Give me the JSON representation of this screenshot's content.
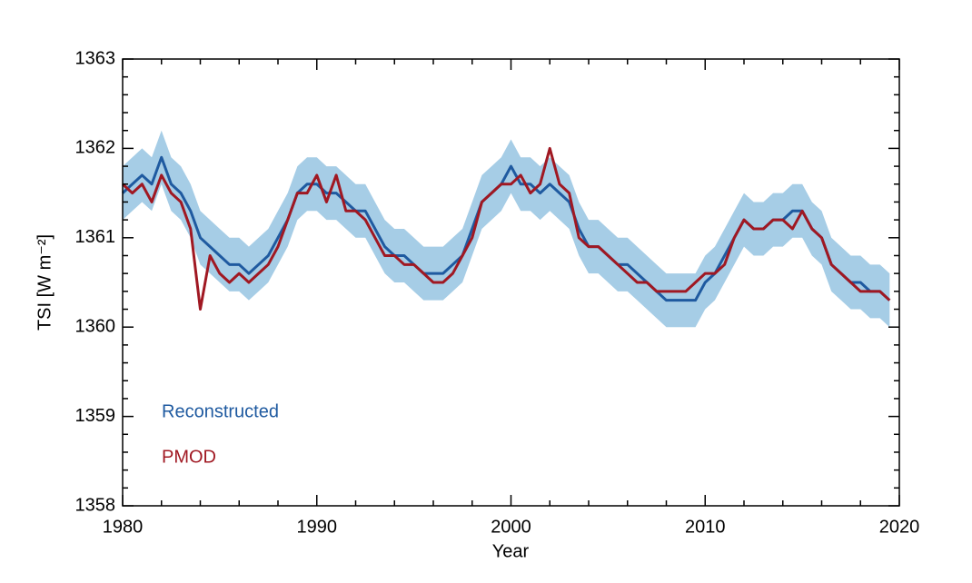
{
  "chart_data": {
    "type": "line",
    "x_label": "Year",
    "y_label": "TSI [W m⁻²]",
    "x": [
      1980,
      1980.5,
      1981,
      1981.5,
      1982,
      1982.5,
      1983,
      1983.5,
      1984,
      1984.5,
      1985,
      1985.5,
      1986,
      1986.5,
      1987,
      1987.5,
      1988,
      1988.5,
      1989,
      1989.5,
      1990,
      1990.5,
      1991,
      1991.5,
      1992,
      1992.5,
      1993,
      1993.5,
      1994,
      1994.5,
      1995,
      1995.5,
      1996,
      1996.5,
      1997,
      1997.5,
      1998,
      1998.5,
      1999,
      1999.5,
      2000,
      2000.5,
      2001,
      2001.5,
      2002,
      2002.5,
      2003,
      2003.5,
      2004,
      2004.5,
      2005,
      2005.5,
      2006,
      2006.5,
      2007,
      2007.5,
      2008,
      2008.5,
      2009,
      2009.5,
      2010,
      2010.5,
      2011,
      2011.5,
      2012,
      2012.5,
      2013,
      2013.5,
      2014,
      2014.5,
      2015,
      2015.5,
      2016,
      2016.5,
      2017,
      2017.5,
      2018,
      2018.5,
      2019,
      2019.5
    ],
    "series": [
      {
        "name": "Reconstructed",
        "color": "#1f5aa0",
        "band_color": "#a6cde6",
        "values": [
          1361.5,
          1361.6,
          1361.7,
          1361.6,
          1361.9,
          1361.6,
          1361.5,
          1361.3,
          1361.0,
          1360.9,
          1360.8,
          1360.7,
          1360.7,
          1360.6,
          1360.7,
          1360.8,
          1361.0,
          1361.2,
          1361.5,
          1361.6,
          1361.6,
          1361.5,
          1361.5,
          1361.4,
          1361.3,
          1361.3,
          1361.1,
          1360.9,
          1360.8,
          1360.8,
          1360.7,
          1360.6,
          1360.6,
          1360.6,
          1360.7,
          1360.8,
          1361.1,
          1361.4,
          1361.5,
          1361.6,
          1361.8,
          1361.6,
          1361.6,
          1361.5,
          1361.6,
          1361.5,
          1361.4,
          1361.1,
          1360.9,
          1360.9,
          1360.8,
          1360.7,
          1360.7,
          1360.6,
          1360.5,
          1360.4,
          1360.3,
          1360.3,
          1360.3,
          1360.3,
          1360.5,
          1360.6,
          1360.8,
          1361.0,
          1361.2,
          1361.1,
          1361.1,
          1361.2,
          1361.2,
          1361.3,
          1361.3,
          1361.1,
          1361.0,
          1360.7,
          1360.6,
          1360.5,
          1360.5,
          1360.4,
          1360.4,
          1360.3
        ],
        "lower": [
          1361.2,
          1361.3,
          1361.4,
          1361.3,
          1361.6,
          1361.3,
          1361.2,
          1361.0,
          1360.7,
          1360.6,
          1360.5,
          1360.4,
          1360.4,
          1360.3,
          1360.4,
          1360.5,
          1360.7,
          1360.9,
          1361.2,
          1361.3,
          1361.3,
          1361.2,
          1361.2,
          1361.1,
          1361.0,
          1361.0,
          1360.8,
          1360.6,
          1360.5,
          1360.5,
          1360.4,
          1360.3,
          1360.3,
          1360.3,
          1360.4,
          1360.5,
          1360.8,
          1361.1,
          1361.2,
          1361.3,
          1361.5,
          1361.3,
          1361.3,
          1361.2,
          1361.3,
          1361.2,
          1361.1,
          1360.8,
          1360.6,
          1360.6,
          1360.5,
          1360.4,
          1360.4,
          1360.3,
          1360.2,
          1360.1,
          1360.0,
          1360.0,
          1360.0,
          1360.0,
          1360.2,
          1360.3,
          1360.5,
          1360.7,
          1360.9,
          1360.8,
          1360.8,
          1360.9,
          1360.9,
          1361.0,
          1361.0,
          1360.8,
          1360.7,
          1360.4,
          1360.3,
          1360.2,
          1360.2,
          1360.1,
          1360.1,
          1360.0
        ],
        "upper": [
          1361.8,
          1361.9,
          1362.0,
          1361.9,
          1362.2,
          1361.9,
          1361.8,
          1361.6,
          1361.3,
          1361.2,
          1361.1,
          1361.0,
          1361.0,
          1360.9,
          1361.0,
          1361.1,
          1361.3,
          1361.5,
          1361.8,
          1361.9,
          1361.9,
          1361.8,
          1361.8,
          1361.7,
          1361.6,
          1361.6,
          1361.4,
          1361.2,
          1361.1,
          1361.1,
          1361.0,
          1360.9,
          1360.9,
          1360.9,
          1361.0,
          1361.1,
          1361.4,
          1361.7,
          1361.8,
          1361.9,
          1362.1,
          1361.9,
          1361.9,
          1361.8,
          1361.9,
          1361.8,
          1361.7,
          1361.4,
          1361.2,
          1361.2,
          1361.1,
          1361.0,
          1361.0,
          1360.9,
          1360.8,
          1360.7,
          1360.6,
          1360.6,
          1360.6,
          1360.6,
          1360.8,
          1360.9,
          1361.1,
          1361.3,
          1361.5,
          1361.4,
          1361.4,
          1361.5,
          1361.5,
          1361.6,
          1361.6,
          1361.4,
          1361.3,
          1361.0,
          1360.9,
          1360.8,
          1360.8,
          1360.7,
          1360.7,
          1360.6
        ]
      },
      {
        "name": "PMOD",
        "color": "#a01822",
        "values": [
          1361.6,
          1361.5,
          1361.6,
          1361.4,
          1361.7,
          1361.5,
          1361.4,
          1361.1,
          1360.2,
          1360.8,
          1360.6,
          1360.5,
          1360.6,
          1360.5,
          1360.6,
          1360.7,
          1360.9,
          1361.2,
          1361.5,
          1361.5,
          1361.7,
          1361.4,
          1361.7,
          1361.3,
          1361.3,
          1361.2,
          1361.0,
          1360.8,
          1360.8,
          1360.7,
          1360.7,
          1360.6,
          1360.5,
          1360.5,
          1360.6,
          1360.8,
          1361.0,
          1361.4,
          1361.5,
          1361.6,
          1361.6,
          1361.7,
          1361.5,
          1361.6,
          1362.0,
          1361.6,
          1361.5,
          1361.0,
          1360.9,
          1360.9,
          1360.8,
          1360.7,
          1360.6,
          1360.5,
          1360.5,
          1360.4,
          1360.4,
          1360.4,
          1360.4,
          1360.5,
          1360.6,
          1360.6,
          1360.7,
          1361.0,
          1361.2,
          1361.1,
          1361.1,
          1361.2,
          1361.2,
          1361.1,
          1361.3,
          1361.1,
          1361.0,
          1360.7,
          1360.6,
          1360.5,
          1360.4,
          1360.4,
          1360.4,
          1360.3
        ]
      }
    ],
    "xlim": [
      1980,
      2020
    ],
    "xticks": [
      1980,
      1990,
      2000,
      2010,
      2020
    ],
    "xminor": 5,
    "ylim": [
      1358,
      1363
    ],
    "yticks": [
      1358,
      1359,
      1360,
      1361,
      1362,
      1363
    ],
    "yminor": 5,
    "legend": "lower left",
    "grid": false
  }
}
